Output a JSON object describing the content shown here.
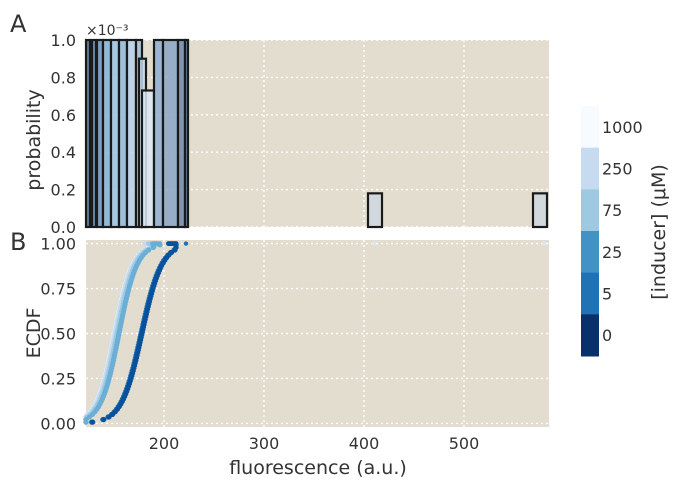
{
  "panels": {
    "a_label": "A",
    "b_label": "B"
  },
  "colors": {
    "plot_bg": "#e3ddd0",
    "grid": "#ffffff",
    "edge": "#1a1a1a"
  },
  "chart_data": [
    {
      "type": "histogram",
      "panel": "A",
      "ylabel": "probability",
      "y_multiplier_label": "×10⁻³",
      "yticks": [
        "0.0",
        "0.2",
        "0.4",
        "0.6",
        "0.8",
        "1.0"
      ],
      "xlim": [
        122,
        585
      ],
      "ylim": [
        0,
        1.0
      ],
      "grid": true,
      "bars": [
        {
          "x0": 122,
          "x1": 126,
          "height": 1.0,
          "color": "#4a6f92",
          "edge": true
        },
        {
          "x0": 128,
          "x1": 132,
          "height": 1.0,
          "color": "#5b80a8",
          "edge": true
        },
        {
          "x0": 133,
          "x1": 139,
          "height": 1.0,
          "color": "#6c94c0",
          "edge": true
        },
        {
          "x0": 139,
          "x1": 147,
          "height": 1.0,
          "color": "#86b3d8",
          "edge": true
        },
        {
          "x0": 147,
          "x1": 155,
          "height": 1.0,
          "color": "#9ec3e3",
          "edge": true
        },
        {
          "x0": 155,
          "x1": 163,
          "height": 1.0,
          "color": "#90bad9",
          "edge": true
        },
        {
          "x0": 163,
          "x1": 172,
          "height": 1.0,
          "color": "#b7d2ea",
          "edge": true
        },
        {
          "x0": 172,
          "x1": 178,
          "height": 1.0,
          "color": "#9cbfdc",
          "edge": true
        },
        {
          "x0": 175,
          "x1": 182,
          "height": 0.9,
          "color": "#c7dbee",
          "edge": true
        },
        {
          "x0": 178,
          "x1": 190,
          "height": 0.73,
          "color": "#dde9f5",
          "edge": true
        },
        {
          "x0": 190,
          "x1": 199,
          "height": 1.0,
          "color": "#8faed0",
          "edge": true
        },
        {
          "x0": 199,
          "x1": 214,
          "height": 1.0,
          "color": "#8aa6c4",
          "edge": true
        },
        {
          "x0": 214,
          "x1": 221,
          "height": 1.0,
          "color": "#6e8aa8",
          "edge": true
        },
        {
          "x0": 221,
          "x1": 224,
          "height": 1.0,
          "color": "#5d7897",
          "edge": true
        },
        {
          "x0": 404,
          "x1": 418,
          "height": 0.18,
          "color": "#cfd8e0",
          "edge": true
        },
        {
          "x0": 569,
          "x1": 583,
          "height": 0.18,
          "color": "#cfd8e0",
          "edge": true
        }
      ]
    },
    {
      "type": "scatter",
      "panel": "B",
      "xlabel": "fluorescence (a.u.)",
      "ylabel": "ECDF",
      "xticks": [
        200,
        300,
        400,
        500
      ],
      "yticks": [
        "0.00",
        "0.25",
        "0.50",
        "0.75",
        "1.00"
      ],
      "xlim": [
        122,
        585
      ],
      "ylim": [
        -0.02,
        1.02
      ],
      "grid": true,
      "series": [
        {
          "inducer": "1000",
          "color": "#f7fbff",
          "center": 150,
          "scale": 9,
          "xmax": 190,
          "outliers": [
            [
              410,
              1.0
            ],
            [
              580,
              1.0
            ]
          ]
        },
        {
          "inducer": "250",
          "color": "#c6dbef",
          "center": 151,
          "scale": 9,
          "xmax": 188,
          "outliers": []
        },
        {
          "inducer": "75",
          "color": "#9ecae1",
          "center": 153,
          "scale": 9,
          "xmax": 192,
          "outliers": []
        },
        {
          "inducer": "25",
          "color": "#6baed6",
          "center": 155,
          "scale": 9,
          "xmax": 196,
          "outliers": []
        },
        {
          "inducer": "5",
          "color": "#2171b5",
          "center": 177,
          "scale": 10,
          "xmax": 212,
          "outliers": [
            [
              222,
              1.0
            ]
          ]
        },
        {
          "inducer": "0",
          "color": "#08519c",
          "center": 178,
          "scale": 10,
          "xmax": 212,
          "outliers": []
        }
      ]
    }
  ],
  "colorbar": {
    "title": "[inducer] (μM)",
    "entries": [
      {
        "label": "1000",
        "color": "#f7fbff"
      },
      {
        "label": "250",
        "color": "#c6dbef"
      },
      {
        "label": "75",
        "color": "#9ecae1"
      },
      {
        "label": "25",
        "color": "#4292c6"
      },
      {
        "label": "5",
        "color": "#2171b5"
      },
      {
        "label": "0",
        "color": "#08306b"
      }
    ]
  }
}
